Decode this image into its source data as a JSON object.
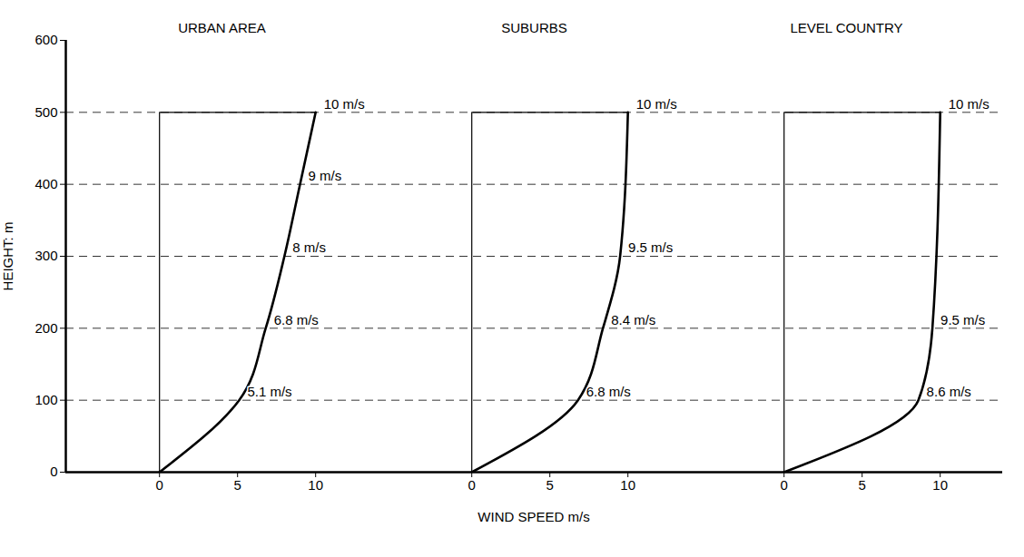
{
  "chart_data": {
    "type": "line",
    "y_label": "HEIGHT: m",
    "x_label": "WIND SPEED m/s",
    "ylim": [
      0,
      600
    ],
    "yticks": [
      0,
      100,
      200,
      300,
      400,
      500,
      600
    ],
    "xlim": [
      -6,
      14
    ],
    "xticks": [
      0,
      5,
      10
    ],
    "grid": true,
    "data_labels": true,
    "color": "#000000",
    "panels": [
      {
        "title": "URBAN AREA",
        "speeds": [
          0,
          5.1,
          6.8,
          8,
          9,
          10
        ],
        "heights": [
          0,
          100,
          200,
          300,
          400,
          500
        ],
        "value_labels": [
          null,
          "5.1 m/s",
          "6.8 m/s",
          "8 m/s",
          "9 m/s",
          "10 m/s"
        ]
      },
      {
        "title": "SUBURBS",
        "speeds": [
          0,
          6.8,
          8.4,
          9.5,
          10
        ],
        "heights": [
          0,
          100,
          200,
          300,
          500
        ],
        "value_labels": [
          null,
          "6.8 m/s",
          "8.4 m/s",
          "9.5 m/s",
          "10 m/s"
        ]
      },
      {
        "title": "LEVEL COUNTRY",
        "speeds": [
          0,
          8.6,
          9.5,
          10
        ],
        "heights": [
          0,
          100,
          200,
          500
        ],
        "value_labels": [
          null,
          "8.6 m/s",
          "9.5 m/s",
          "10 m/s"
        ]
      }
    ]
  }
}
